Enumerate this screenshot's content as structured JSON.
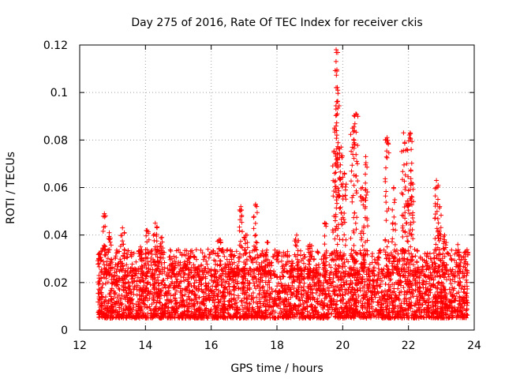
{
  "chart_data": {
    "type": "scatter",
    "title": "Day 275 of 2016, Rate Of TEC Index for receiver ckis",
    "xlabel": "GPS time / hours",
    "ylabel": "ROTI / TECUs",
    "xlim": [
      12,
      24
    ],
    "ylim": [
      0,
      0.12
    ],
    "xticks": [
      12,
      14,
      16,
      18,
      20,
      22,
      24
    ],
    "yticks": [
      0,
      0.02,
      0.04,
      0.06,
      0.08,
      0.1,
      0.12
    ],
    "ytick_labels": [
      "0",
      "0.02",
      "0.04",
      "0.06",
      "0.08",
      "0.1",
      "0.12"
    ],
    "grid": true,
    "marker": "plus",
    "color": "#ff0000",
    "x_range_of_data": [
      12.55,
      23.8
    ],
    "baseline_band": [
      0.005,
      0.026
    ],
    "peaks": [
      {
        "x": 12.6,
        "y": 0.032
      },
      {
        "x": 12.75,
        "y": 0.049
      },
      {
        "x": 12.9,
        "y": 0.041
      },
      {
        "x": 13.3,
        "y": 0.043
      },
      {
        "x": 13.85,
        "y": 0.035
      },
      {
        "x": 14.05,
        "y": 0.042
      },
      {
        "x": 14.3,
        "y": 0.045
      },
      {
        "x": 14.5,
        "y": 0.039
      },
      {
        "x": 15.2,
        "y": 0.026
      },
      {
        "x": 16.25,
        "y": 0.038
      },
      {
        "x": 16.9,
        "y": 0.052
      },
      {
        "x": 17.05,
        "y": 0.04
      },
      {
        "x": 17.35,
        "y": 0.053
      },
      {
        "x": 17.7,
        "y": 0.037
      },
      {
        "x": 18.6,
        "y": 0.04
      },
      {
        "x": 19.0,
        "y": 0.036
      },
      {
        "x": 19.45,
        "y": 0.045
      },
      {
        "x": 19.75,
        "y": 0.085
      },
      {
        "x": 19.8,
        "y": 0.118
      },
      {
        "x": 19.85,
        "y": 0.101
      },
      {
        "x": 19.95,
        "y": 0.077
      },
      {
        "x": 20.05,
        "y": 0.066
      },
      {
        "x": 20.3,
        "y": 0.085
      },
      {
        "x": 20.4,
        "y": 0.091
      },
      {
        "x": 20.6,
        "y": 0.06
      },
      {
        "x": 20.7,
        "y": 0.073
      },
      {
        "x": 21.35,
        "y": 0.081
      },
      {
        "x": 21.55,
        "y": 0.06
      },
      {
        "x": 21.85,
        "y": 0.083
      },
      {
        "x": 21.95,
        "y": 0.076
      },
      {
        "x": 22.05,
        "y": 0.083
      },
      {
        "x": 22.1,
        "y": 0.062
      },
      {
        "x": 22.85,
        "y": 0.063
      },
      {
        "x": 22.95,
        "y": 0.052
      },
      {
        "x": 23.1,
        "y": 0.04
      },
      {
        "x": 23.5,
        "y": 0.036
      },
      {
        "x": 23.75,
        "y": 0.033
      }
    ]
  }
}
